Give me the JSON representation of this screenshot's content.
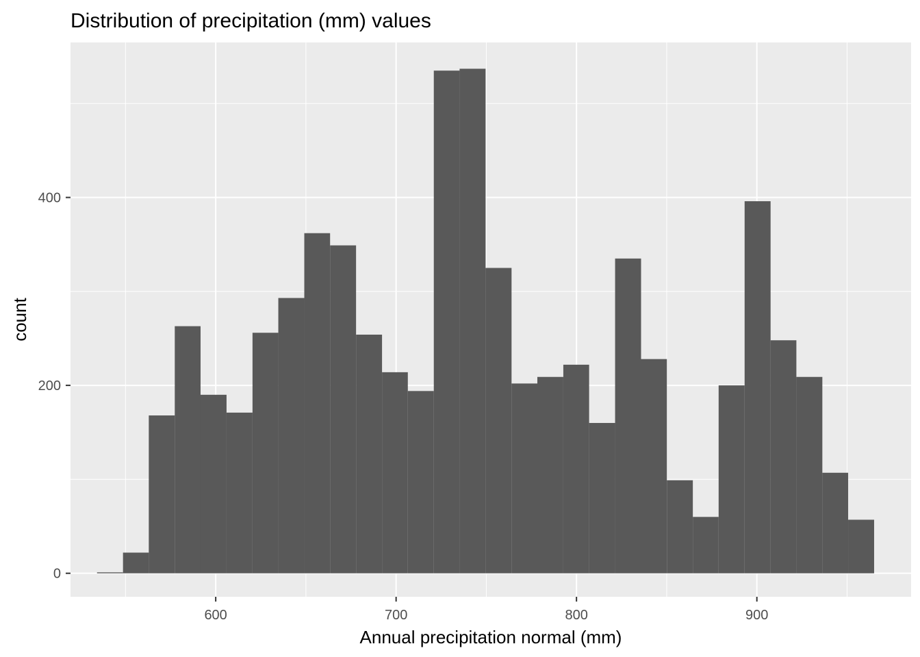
{
  "chart_data": {
    "type": "bar",
    "title": "Distribution of precipitation (mm) values",
    "xlabel": "Annual precipitation normal (mm)",
    "ylabel": "count",
    "xlim": [
      519.5,
      985.5
    ],
    "ylim": [
      -25,
      565
    ],
    "xticks": [
      600,
      700,
      800,
      900
    ],
    "xtick_labels": [
      "600",
      "700",
      "800",
      "900"
    ],
    "yticks": [
      0,
      200,
      400
    ],
    "ytick_labels": [
      "0",
      "200",
      "400"
    ],
    "grid": true,
    "legend": "none",
    "bar_color": "#595959",
    "panel_color": "#ebebeb",
    "grid_color": "#ffffff",
    "bins": [
      {
        "x0": 534.2,
        "x1": 548.6,
        "count": 1
      },
      {
        "x0": 548.6,
        "x1": 562.9,
        "count": 22
      },
      {
        "x0": 562.9,
        "x1": 577.3,
        "count": 168
      },
      {
        "x0": 577.3,
        "x1": 591.6,
        "count": 263
      },
      {
        "x0": 591.6,
        "x1": 606.0,
        "count": 190
      },
      {
        "x0": 606.0,
        "x1": 620.4,
        "count": 171
      },
      {
        "x0": 620.4,
        "x1": 634.7,
        "count": 256
      },
      {
        "x0": 634.7,
        "x1": 649.1,
        "count": 293
      },
      {
        "x0": 649.1,
        "x1": 663.4,
        "count": 362
      },
      {
        "x0": 663.4,
        "x1": 677.8,
        "count": 349
      },
      {
        "x0": 677.8,
        "x1": 692.2,
        "count": 254
      },
      {
        "x0": 692.2,
        "x1": 706.5,
        "count": 214
      },
      {
        "x0": 706.5,
        "x1": 720.9,
        "count": 194
      },
      {
        "x0": 720.9,
        "x1": 735.2,
        "count": 535
      },
      {
        "x0": 735.2,
        "x1": 749.6,
        "count": 537
      },
      {
        "x0": 749.6,
        "x1": 764.0,
        "count": 325
      },
      {
        "x0": 764.0,
        "x1": 778.3,
        "count": 202
      },
      {
        "x0": 778.3,
        "x1": 792.7,
        "count": 209
      },
      {
        "x0": 792.7,
        "x1": 807.0,
        "count": 222
      },
      {
        "x0": 807.0,
        "x1": 821.4,
        "count": 160
      },
      {
        "x0": 821.4,
        "x1": 835.8,
        "count": 335
      },
      {
        "x0": 835.8,
        "x1": 850.1,
        "count": 228
      },
      {
        "x0": 850.1,
        "x1": 864.5,
        "count": 99
      },
      {
        "x0": 864.5,
        "x1": 878.8,
        "count": 60
      },
      {
        "x0": 878.8,
        "x1": 893.2,
        "count": 200
      },
      {
        "x0": 893.2,
        "x1": 907.6,
        "count": 396
      },
      {
        "x0": 907.6,
        "x1": 921.9,
        "count": 248
      },
      {
        "x0": 921.9,
        "x1": 936.3,
        "count": 209
      },
      {
        "x0": 936.3,
        "x1": 950.6,
        "count": 107
      },
      {
        "x0": 950.6,
        "x1": 965.0,
        "count": 57
      }
    ]
  }
}
